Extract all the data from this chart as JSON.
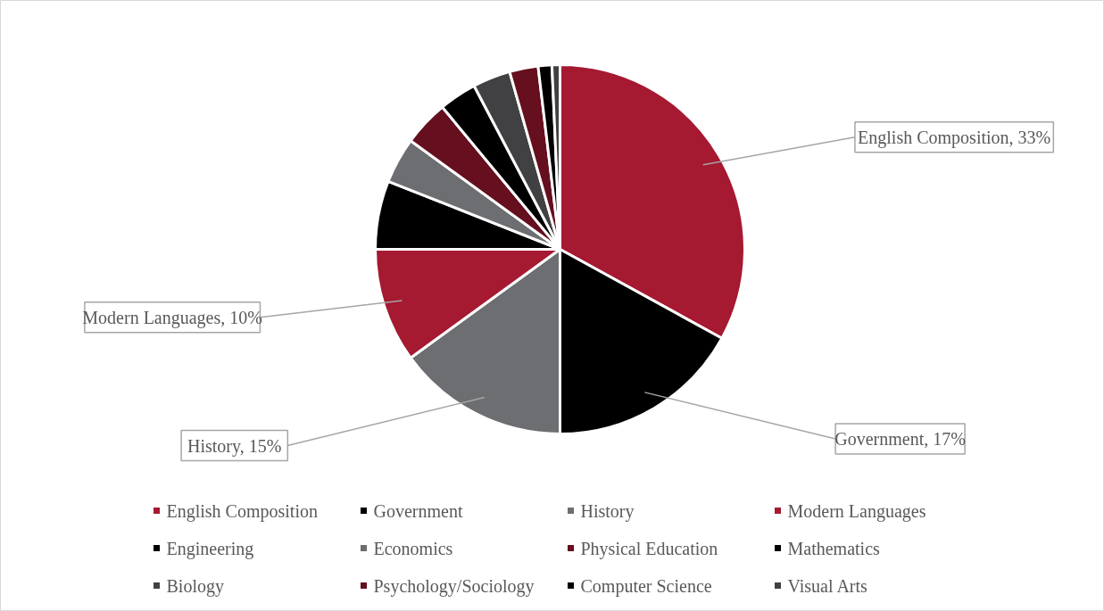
{
  "chart_data": {
    "type": "pie",
    "categories": [
      "English Composition",
      "Government",
      "History",
      "Modern Languages",
      "Engineering",
      "Economics",
      "Physical Education",
      "Mathematics",
      "Biology",
      "Psychology/Sociology",
      "Computer Science",
      "Visual Arts"
    ],
    "values": [
      33,
      17,
      15,
      10,
      6,
      4,
      4,
      3.3,
      3.3,
      2.5,
      1.2,
      0.7
    ],
    "colors": [
      "#a51931",
      "#000000",
      "#6d6e71",
      "#a51931",
      "#000000",
      "#6d6e71",
      "#650f1f",
      "#000000",
      "#414143",
      "#650f1f",
      "#000000",
      "#414143"
    ],
    "value_labels": [
      "English Composition, 33%",
      "Government, 17%",
      "History, 15%",
      "Modern Languages, 10%",
      null,
      null,
      null,
      null,
      null,
      null,
      null,
      null
    ],
    "legend": "bottom"
  }
}
